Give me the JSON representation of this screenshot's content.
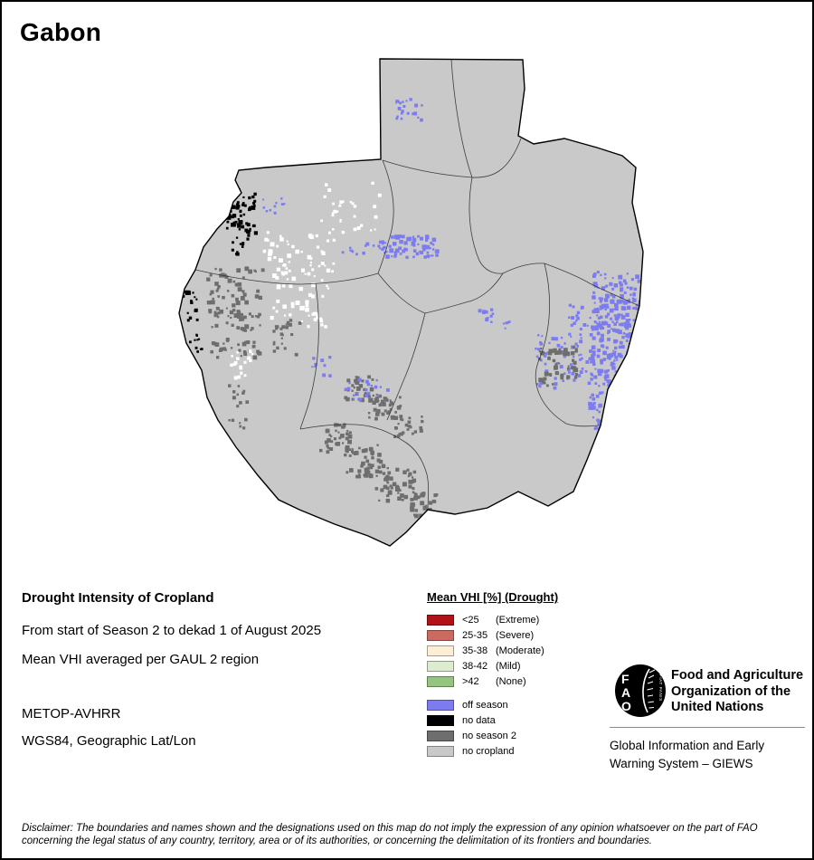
{
  "page": {
    "title": "Gabon"
  },
  "info": {
    "heading": "Drought Intensity of Cropland",
    "period_line": "From start of Season 2 to dekad 1 of August 2025",
    "aggregation_line": "Mean VHI averaged per GAUL 2 region",
    "sensor_line": "METOP-AVHRR",
    "projection_line": "WGS84, Geographic Lat/Lon"
  },
  "legend": {
    "title": "Mean VHI [%] (Drought)",
    "vhi_classes": [
      {
        "range": "<25",
        "qualifier": "(Extreme)",
        "color": "#b01218"
      },
      {
        "range": "25-35",
        "qualifier": "(Severe)",
        "color": "#ca6a60"
      },
      {
        "range": "35-38",
        "qualifier": "(Moderate)",
        "color": "#fdeed6"
      },
      {
        "range": "38-42",
        "qualifier": "(Mild)",
        "color": "#ddebcf"
      },
      {
        "range": ">42",
        "qualifier": "(None)",
        "color": "#94c57e"
      }
    ],
    "other_classes": [
      {
        "label": "off season",
        "color": "#7c7cf0"
      },
      {
        "label": "no data",
        "color": "#000000"
      },
      {
        "label": "no season 2",
        "color": "#6e6e6e"
      },
      {
        "label": "no cropland",
        "color": "#c9c9c9"
      }
    ]
  },
  "fao": {
    "logo_letters": [
      "F",
      "A",
      "O"
    ],
    "logo_motto": "FIAT PANIS",
    "org_lines": [
      "Food and Agriculture",
      "Organization of the",
      "United Nations"
    ],
    "giews_lines": [
      "Global Information and Early",
      "Warning System – GIEWS"
    ]
  },
  "disclaimer": "Disclaimer: The boundaries and names shown and the designations used on this map do not imply the expression of any opinion whatsoever on the part of FAO concerning the legal status of any country, territory, area or of its authorities, or concerning the delimitation of its frontiers and boundaries."
}
